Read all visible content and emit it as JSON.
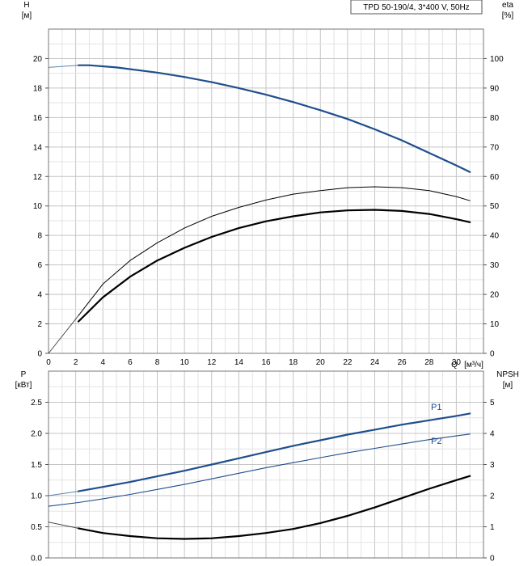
{
  "chart_data": [
    {
      "type": "line",
      "panel": "top",
      "title": "TPD 50-190/4, 3*400 V, 50Hz",
      "xlabel": "Q",
      "xunit": "[м³/ч]",
      "xlim": [
        0,
        32
      ],
      "xticks": [
        0,
        2,
        4,
        6,
        8,
        10,
        12,
        14,
        16,
        18,
        20,
        22,
        24,
        26,
        28,
        30
      ],
      "ylabel_left": "H",
      "yunit_left": "[м]",
      "ylim_left": [
        0,
        22
      ],
      "yticks_left": [
        0,
        2,
        4,
        6,
        8,
        10,
        12,
        14,
        16,
        18,
        20
      ],
      "ylabel_right": "eta",
      "yunit_right": "[%]",
      "ylim_right": [
        0,
        110
      ],
      "yticks_right": [
        0,
        10,
        20,
        30,
        40,
        50,
        60,
        70,
        80,
        90,
        100
      ],
      "grid": true,
      "series": [
        {
          "axis": "left",
          "color": "#1f4e8c",
          "width": 2.2,
          "x": [
            0,
            2.2,
            3,
            5,
            8,
            10,
            12,
            14,
            16,
            18,
            20,
            22,
            24,
            26,
            28,
            30,
            31
          ],
          "values": [
            19.4,
            19.55,
            19.55,
            19.4,
            19.05,
            18.75,
            18.4,
            18.0,
            17.55,
            17.05,
            16.5,
            15.9,
            15.2,
            14.45,
            13.6,
            12.75,
            12.3
          ],
          "solid_from": 2.2
        },
        {
          "axis": "right",
          "color": "#000000",
          "width": 1.0,
          "x": [
            0,
            2.2,
            4,
            6,
            8,
            10,
            12,
            14,
            16,
            18,
            20,
            22,
            24,
            26,
            28,
            30,
            31
          ],
          "values": [
            0,
            12.8,
            23.5,
            31.5,
            37.5,
            42.5,
            46.5,
            49.5,
            52.0,
            54.0,
            55.2,
            56.2,
            56.5,
            56.2,
            55.2,
            53.2,
            51.8
          ],
          "solid_from": 2.2
        },
        {
          "axis": "right",
          "color": "#000000",
          "width": 2.2,
          "x": [
            2.2,
            4,
            6,
            8,
            10,
            12,
            14,
            16,
            18,
            20,
            22,
            24,
            26,
            28,
            30,
            31
          ],
          "values": [
            10.8,
            19.0,
            26.0,
            31.5,
            35.8,
            39.5,
            42.5,
            44.8,
            46.5,
            47.8,
            48.5,
            48.7,
            48.3,
            47.3,
            45.5,
            44.5
          ],
          "solid_from": 2.2
        }
      ]
    },
    {
      "type": "line",
      "panel": "bottom",
      "xlim": [
        0,
        32
      ],
      "ylabel_left": "P",
      "yunit_left": "[кВт]",
      "ylim_left": [
        0,
        3.0
      ],
      "yticks_left": [
        0.0,
        0.5,
        1.0,
        1.5,
        2.0,
        2.5
      ],
      "ytick_labels_left": [
        "0.0",
        "0.5",
        "1.0",
        "1.5",
        "2.0",
        "2.5"
      ],
      "ylabel_right": "NPSH",
      "yunit_right": "[м]",
      "ylim_right": [
        0,
        6
      ],
      "yticks_right": [
        0,
        1,
        2,
        3,
        4,
        5
      ],
      "grid": true,
      "series": [
        {
          "name": "P1",
          "axis": "left",
          "color": "#1f4e8c",
          "width": 2.2,
          "x": [
            0,
            2.2,
            4,
            6,
            8,
            10,
            12,
            14,
            16,
            18,
            20,
            22,
            24,
            26,
            28,
            30,
            31
          ],
          "values": [
            1.0,
            1.07,
            1.14,
            1.22,
            1.31,
            1.4,
            1.5,
            1.6,
            1.7,
            1.8,
            1.89,
            1.98,
            2.06,
            2.14,
            2.21,
            2.28,
            2.32
          ],
          "solid_from": 2.2
        },
        {
          "name": "P2",
          "axis": "left",
          "color": "#1f4e8c",
          "width": 1.1,
          "x": [
            0,
            2.2,
            4,
            6,
            8,
            10,
            12,
            14,
            16,
            18,
            20,
            22,
            24,
            26,
            28,
            30,
            31
          ],
          "values": [
            0.83,
            0.89,
            0.95,
            1.02,
            1.1,
            1.18,
            1.27,
            1.36,
            1.45,
            1.53,
            1.61,
            1.69,
            1.76,
            1.83,
            1.9,
            1.96,
            1.99
          ],
          "solid_from": 0
        },
        {
          "axis": "right",
          "color": "#000000",
          "width": 2.2,
          "x": [
            0,
            2.2,
            4,
            6,
            8,
            10,
            12,
            14,
            16,
            18,
            20,
            22,
            24,
            26,
            28,
            30,
            31
          ],
          "values": [
            1.15,
            0.95,
            0.8,
            0.7,
            0.63,
            0.61,
            0.63,
            0.7,
            0.8,
            0.93,
            1.12,
            1.35,
            1.62,
            1.92,
            2.22,
            2.5,
            2.63
          ],
          "solid_from": 2.2
        }
      ]
    }
  ]
}
